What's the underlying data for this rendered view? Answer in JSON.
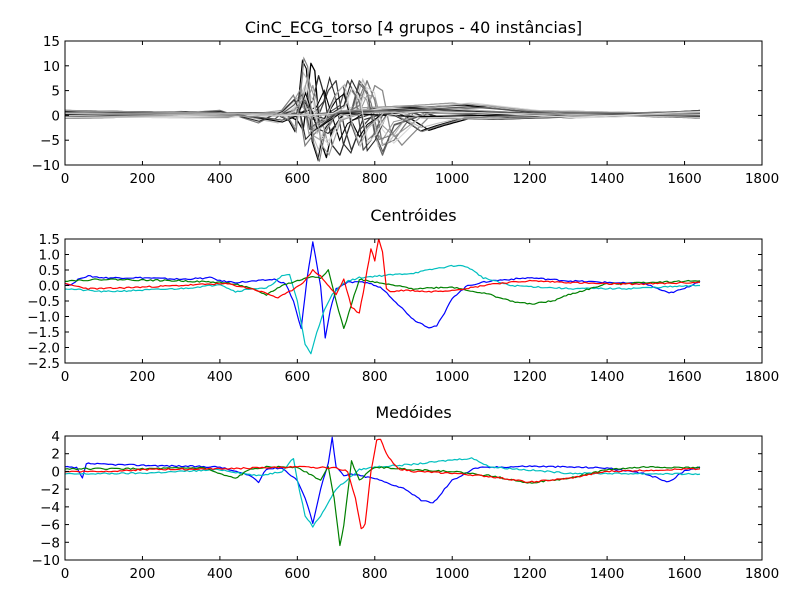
{
  "figure": {
    "background": "#ffffff"
  },
  "chart_data": [
    {
      "type": "line",
      "title": "CinC_ECG_torso [4 grupos - 40 instâncias]",
      "xlabel": "",
      "ylabel": "",
      "xlim": [
        0,
        1800
      ],
      "ylim": [
        -10,
        15
      ],
      "xticks": [
        0,
        200,
        400,
        600,
        800,
        1000,
        1200,
        1400,
        1600,
        1800
      ],
      "yticks": [
        -10,
        -5,
        0,
        5,
        10,
        15
      ],
      "grid": false,
      "legend": "none",
      "series_count": 40,
      "palette": [
        "#000000",
        "#2b2b2b",
        "#555555",
        "#7a7a7a",
        "#9a9a9a",
        "#bdbdbd",
        "#d8d8d8"
      ],
      "series": [
        {
          "color": "#000000",
          "x": [
            0,
            100,
            300,
            500,
            560,
            600,
            615,
            625,
            635,
            645,
            660,
            675,
            690,
            720,
            780,
            850,
            900,
            940,
            980,
            1050,
            1300,
            1500,
            1640
          ],
          "y": [
            0.5,
            0.8,
            0.6,
            0.3,
            0.5,
            -1,
            -3,
            3,
            10.5,
            9,
            -5,
            -8.5,
            -3,
            0.5,
            1,
            0.8,
            -1,
            -3,
            -2,
            -0.5,
            0.3,
            0.5,
            0.8
          ]
        },
        {
          "color": "#2b2b2b",
          "x": [
            0,
            200,
            500,
            600,
            620,
            640,
            655,
            670,
            690,
            710,
            740,
            800,
            880,
            950,
            1100,
            1300,
            1640
          ],
          "y": [
            1,
            0.7,
            0.4,
            0.2,
            1,
            3,
            8,
            4,
            -6,
            -8,
            -1,
            0.5,
            0.8,
            -0.5,
            -0.8,
            -0.3,
            0.5
          ]
        },
        {
          "color": "#404040",
          "x": [
            0,
            300,
            600,
            650,
            680,
            700,
            720,
            740,
            760,
            800,
            900,
            1100,
            1300,
            1640
          ],
          "y": [
            0.4,
            0.3,
            0.3,
            -1,
            5,
            7,
            -2,
            -7,
            -3,
            0.5,
            1,
            0.5,
            0.2,
            -0.5
          ]
        },
        {
          "color": "#555555",
          "x": [
            0,
            300,
            600,
            680,
            710,
            730,
            750,
            770,
            790,
            820,
            900,
            1100,
            1300,
            1640
          ],
          "y": [
            -0.5,
            -0.3,
            0,
            0.5,
            2,
            7,
            4,
            -7,
            -5,
            0,
            1,
            0.5,
            -0.5,
            1
          ]
        },
        {
          "color": "#666666",
          "x": [
            0,
            300,
            600,
            700,
            740,
            760,
            780,
            800,
            820,
            850,
            950,
            1150,
            1400,
            1640
          ],
          "y": [
            0.2,
            0.4,
            0.2,
            0.3,
            1,
            7,
            5,
            -4,
            -8,
            -2,
            0.8,
            -0.5,
            0.5,
            0.3
          ]
        },
        {
          "color": "#7a7a7a",
          "x": [
            0,
            300,
            600,
            720,
            760,
            780,
            800,
            820,
            850,
            900,
            1000,
            1100,
            1200,
            1640
          ],
          "y": [
            0.6,
            0.2,
            0,
            0.2,
            2,
            7,
            3,
            -6,
            -5,
            0.5,
            1.5,
            2,
            1,
            0.3
          ]
        },
        {
          "color": "#8a8a8a",
          "x": [
            0,
            300,
            600,
            740,
            780,
            800,
            820,
            840,
            870,
            950,
            1100,
            1300,
            1640
          ],
          "y": [
            -0.3,
            0.1,
            0.3,
            0,
            1,
            6,
            5,
            -3,
            -6,
            0.5,
            0.8,
            0.2,
            -0.2
          ]
        },
        {
          "color": "#9a9a9a",
          "x": [
            0,
            300,
            580,
            620,
            640,
            660,
            680,
            700,
            760,
            900,
            1000,
            1050,
            1200,
            1640
          ],
          "y": [
            0.3,
            0.6,
            0.5,
            2,
            6,
            0,
            -6,
            -2,
            1.5,
            2,
            2.5,
            2,
            0.5,
            0.5
          ]
        },
        {
          "color": "#aaaaaa",
          "x": [
            0,
            400,
            560,
            600,
            620,
            640,
            660,
            700,
            800,
            1000,
            1300,
            1640
          ],
          "y": [
            -0.3,
            -0.5,
            1,
            3.5,
            1,
            -4,
            -5,
            0,
            1.5,
            1,
            -0.5,
            0.2
          ]
        },
        {
          "color": "#bdbdbd",
          "x": [
            0,
            300,
            450,
            550,
            590,
            610,
            625,
            640,
            700,
            900,
            1200,
            1640
          ],
          "y": [
            0.2,
            0.8,
            0,
            -1.5,
            0,
            5,
            1,
            -3,
            0.5,
            -0.3,
            0.2,
            0.4
          ]
        },
        {
          "color": "#cccccc",
          "x": [
            0,
            300,
            400,
            500,
            560,
            590,
            605,
            620,
            640,
            700,
            900,
            1100,
            1300,
            1640
          ],
          "y": [
            1,
            0.5,
            1,
            -1.5,
            1,
            4,
            1,
            -6,
            -4,
            0.5,
            1.8,
            0.8,
            0.2,
            0.5
          ]
        },
        {
          "color": "#d8d8d8",
          "x": [
            0,
            350,
            450,
            550,
            600,
            620,
            640,
            660,
            720,
            900,
            1050,
            1300,
            1640
          ],
          "y": [
            -0.5,
            0.8,
            0,
            -1,
            3,
            6,
            -4,
            -2,
            1,
            1.5,
            2.5,
            0.3,
            -0.2
          ]
        }
      ]
    },
    {
      "type": "line",
      "title": "Centróides",
      "xlabel": "",
      "ylabel": "",
      "xlim": [
        0,
        1800
      ],
      "ylim": [
        -2.5,
        1.5
      ],
      "xticks": [
        0,
        200,
        400,
        600,
        800,
        1000,
        1200,
        1400,
        1600,
        1800
      ],
      "yticks": [
        -2.5,
        -2.0,
        -1.5,
        -1.0,
        -0.5,
        0.0,
        0.5,
        1.0,
        1.5
      ],
      "ytick_labels": [
        "−2.5",
        "−2.0",
        "−1.5",
        "−1.0",
        "−0.5",
        "0.0",
        "0.5",
        "1.0",
        "1.5"
      ],
      "grid": false,
      "legend": "none",
      "series": [
        {
          "color": "#0000ff",
          "x": [
            0,
            20,
            40,
            60,
            100,
            200,
            300,
            380,
            400,
            440,
            500,
            540,
            570,
            590,
            610,
            625,
            640,
            660,
            672,
            685,
            700,
            730,
            780,
            820,
            860,
            900,
            940,
            960,
            980,
            1000,
            1040,
            1100,
            1200,
            1300,
            1400,
            1500,
            1560,
            1600,
            1640
          ],
          "y": [
            0,
            0.05,
            0.25,
            0.3,
            0.25,
            0.25,
            0.2,
            0.25,
            0.15,
            0.1,
            0.15,
            0.2,
            0.05,
            -0.5,
            -1.4,
            0.2,
            1.4,
            0,
            -1.7,
            -0.8,
            -0.1,
            0.1,
            0.1,
            -0.1,
            -0.6,
            -1.1,
            -1.35,
            -1.3,
            -0.9,
            -0.4,
            0,
            0.15,
            0.25,
            0.15,
            0.1,
            0.05,
            -0.25,
            -0.1,
            0.15
          ]
        },
        {
          "color": "#00bfbf",
          "x": [
            0,
            100,
            200,
            300,
            380,
            400,
            440,
            480,
            520,
            560,
            580,
            600,
            620,
            635,
            650,
            670,
            690,
            720,
            760,
            800,
            900,
            960,
            1010,
            1040,
            1080,
            1150,
            1300,
            1450,
            1640
          ],
          "y": [
            -0.1,
            -0.2,
            -0.15,
            -0.1,
            0,
            0.05,
            -0.2,
            -0.1,
            -0.1,
            0.3,
            0.35,
            -0.5,
            -1.9,
            -2.2,
            -1.5,
            -0.8,
            -0.3,
            0.1,
            0.25,
            0.3,
            0.4,
            0.55,
            0.65,
            0.6,
            0.25,
            0,
            -0.1,
            -0.1,
            0
          ]
        },
        {
          "color": "#008000",
          "x": [
            0,
            100,
            300,
            400,
            440,
            480,
            520,
            560,
            600,
            640,
            660,
            680,
            700,
            720,
            740,
            760,
            800,
            900,
            1000,
            1100,
            1150,
            1200,
            1260,
            1300,
            1400,
            1500,
            1640
          ],
          "y": [
            0.15,
            0.2,
            0.15,
            0.1,
            0.05,
            -0.1,
            -0.3,
            0,
            0.15,
            0.3,
            0.25,
            0.5,
            -0.5,
            -1.4,
            -0.6,
            0.2,
            0.1,
            -0.1,
            -0.05,
            -0.3,
            -0.5,
            -0.6,
            -0.5,
            -0.3,
            0.05,
            0.1,
            0.15
          ]
        },
        {
          "color": "#ff0000",
          "x": [
            0,
            60,
            100,
            200,
            300,
            380,
            420,
            480,
            520,
            550,
            580,
            620,
            640,
            660,
            700,
            720,
            740,
            760,
            775,
            790,
            800,
            810,
            820,
            830,
            840,
            880,
            940,
            1000,
            1060,
            1100,
            1200,
            1300,
            1400,
            1500,
            1640
          ],
          "y": [
            0.05,
            -0.1,
            -0.1,
            -0.05,
            0,
            0.05,
            0.05,
            -0.1,
            -0.25,
            -0.4,
            -0.2,
            0.15,
            0.5,
            0.3,
            -0.3,
            0.2,
            -0.7,
            -0.9,
            0.1,
            1.2,
            0.8,
            1.5,
            1.1,
            -0.1,
            -0.2,
            -0.15,
            -0.2,
            -0.15,
            -0.05,
            0.05,
            0.15,
            0.1,
            0.05,
            0.05,
            0.1
          ]
        }
      ]
    },
    {
      "type": "line",
      "title": "Medóides",
      "xlabel": "",
      "ylabel": "",
      "xlim": [
        0,
        1800
      ],
      "ylim": [
        -10,
        4
      ],
      "xticks": [
        0,
        200,
        400,
        600,
        800,
        1000,
        1200,
        1400,
        1600,
        1800
      ],
      "yticks": [
        -10,
        -8,
        -6,
        -4,
        -2,
        0,
        2,
        4
      ],
      "ytick_labels": [
        "−10",
        "−8",
        "−6",
        "−4",
        "−2",
        "0",
        "2",
        "4"
      ],
      "grid": false,
      "legend": "none",
      "series": [
        {
          "color": "#0000ff",
          "x": [
            0,
            30,
            45,
            55,
            100,
            300,
            400,
            480,
            500,
            520,
            560,
            600,
            620,
            640,
            660,
            680,
            690,
            700,
            720,
            740,
            800,
            880,
            920,
            950,
            960,
            980,
            1000,
            1060,
            1200,
            1400,
            1500,
            1560,
            1600,
            1640
          ],
          "y": [
            0.5,
            0.4,
            -0.8,
            0.9,
            0.8,
            0.6,
            0.5,
            -0.5,
            -1.2,
            0.3,
            0.4,
            -1,
            -3,
            -5.8,
            -2,
            1,
            3.8,
            0.5,
            -0.5,
            -0.3,
            -0.8,
            -2,
            -3.3,
            -3.5,
            -3.2,
            -2,
            -1,
            0.4,
            0.6,
            0.4,
            -0.3,
            -1.2,
            0.1,
            0.5
          ]
        },
        {
          "color": "#00bfbf",
          "x": [
            0,
            200,
            400,
            500,
            560,
            590,
            600,
            620,
            640,
            660,
            700,
            760,
            800,
            900,
            1000,
            1050,
            1100,
            1300,
            1640
          ],
          "y": [
            -0.3,
            -0.2,
            0.2,
            -0.5,
            0,
            1.5,
            -1,
            -5,
            -6.2,
            -5,
            -2,
            0.2,
            0.5,
            0.8,
            1.3,
            1.5,
            0.5,
            -0.2,
            -0.3
          ]
        },
        {
          "color": "#008000",
          "x": [
            0,
            200,
            360,
            400,
            440,
            480,
            520,
            600,
            660,
            680,
            695,
            710,
            720,
            740,
            760,
            800,
            900,
            1000,
            1100,
            1200,
            1300,
            1400,
            1500,
            1640
          ],
          "y": [
            0.3,
            0.3,
            0.4,
            -0.3,
            -0.8,
            0.3,
            0.5,
            0.5,
            -1,
            0.5,
            -3,
            -8.4,
            -6,
            1.2,
            -1,
            0.5,
            0.2,
            0,
            -0.5,
            -1.3,
            -0.8,
            0.2,
            0.5,
            0.4
          ]
        },
        {
          "color": "#ff0000",
          "x": [
            0,
            100,
            200,
            400,
            600,
            700,
            730,
            750,
            765,
            775,
            790,
            805,
            815,
            830,
            860,
            900,
            1000,
            1100,
            1200,
            1300,
            1400,
            1640
          ],
          "y": [
            0,
            0,
            0.2,
            0.3,
            0.5,
            0.4,
            0,
            -3,
            -6.5,
            -6,
            0,
            3.5,
            3.6,
            2,
            0.3,
            0,
            -0.2,
            -0.6,
            -1.2,
            -0.8,
            0,
            0.3
          ]
        }
      ]
    }
  ]
}
